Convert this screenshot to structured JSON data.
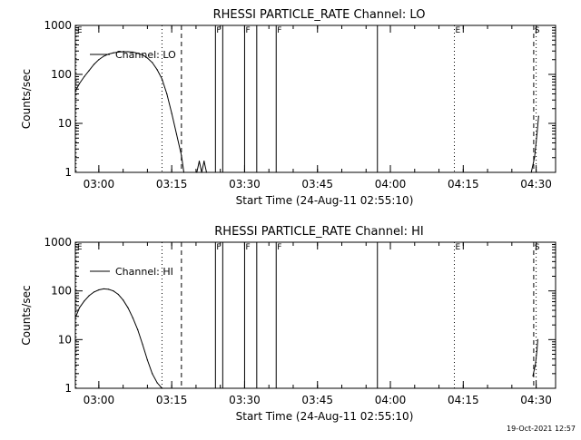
{
  "footer": {
    "timestamp": "19-Oct-2021 12:57"
  },
  "chart_data": [
    {
      "type": "line",
      "title": "RHESSI PARTICLE_RATE Channel: LO",
      "xlabel": "Start Time (24-Aug-11 02:55:10)",
      "ylabel": "Counts/sec",
      "y_scale": "log",
      "ylim": [
        1,
        1000
      ],
      "xlim": [
        "02:55:10",
        "04:34:00"
      ],
      "x_ticks": [
        "03:00",
        "03:15",
        "03:30",
        "03:45",
        "04:00",
        "04:15",
        "04:30"
      ],
      "y_ticks": [
        "1",
        "10",
        "100",
        "1000"
      ],
      "legend": "top-left",
      "series": [
        {
          "name": "Channel: LO",
          "x": [
            "02:55:10",
            "02:56:00",
            "02:57:00",
            "02:58:00",
            "02:59:00",
            "03:00:00",
            "03:01:00",
            "03:02:00",
            "03:03:00",
            "03:04:00",
            "03:05:00",
            "03:06:00",
            "03:07:00",
            "03:08:00",
            "03:09:00",
            "03:10:00",
            "03:11:00",
            "03:12:00",
            "03:13:00",
            "03:14:00",
            "03:15:00",
            "03:16:00",
            "03:17:00",
            "03:17:30"
          ],
          "values": [
            45,
            65,
            90,
            120,
            160,
            200,
            235,
            260,
            275,
            285,
            290,
            290,
            285,
            270,
            250,
            215,
            175,
            125,
            80,
            40,
            16,
            6,
            2.2,
            1
          ]
        },
        {
          "name": "",
          "x": [
            "03:20:10",
            "03:20:40",
            "03:21:10",
            "03:21:40",
            "03:22:10"
          ],
          "values": [
            1,
            1.7,
            1,
            1.7,
            1
          ]
        },
        {
          "name": "",
          "x": [
            "04:29:00",
            "04:29:40",
            "04:30:10",
            "04:30:30"
          ],
          "values": [
            1,
            2,
            6,
            14
          ]
        }
      ],
      "markers": [
        {
          "time": "02:55:20",
          "style": "dotted",
          "label": "E"
        },
        {
          "time": "03:13:00",
          "style": "dotted",
          "label": ""
        },
        {
          "time": "03:17:00",
          "style": "dashed",
          "label": ""
        },
        {
          "time": "03:24:00",
          "style": "solid",
          "label": "F"
        },
        {
          "time": "03:25:30",
          "style": "solid",
          "label": ""
        },
        {
          "time": "03:30:00",
          "style": "solid",
          "label": "F"
        },
        {
          "time": "03:32:30",
          "style": "solid",
          "label": ""
        },
        {
          "time": "03:36:30",
          "style": "solid",
          "label": "F"
        },
        {
          "time": "03:57:20",
          "style": "solid",
          "label": ""
        },
        {
          "time": "04:13:10",
          "style": "dotted",
          "label": "E"
        },
        {
          "time": "04:29:30",
          "style": "dashed",
          "label": "S"
        },
        {
          "time": "04:30:00",
          "style": "dotted",
          "label": ""
        }
      ]
    },
    {
      "type": "line",
      "title": "RHESSI PARTICLE_RATE Channel: HI",
      "xlabel": "Start Time (24-Aug-11 02:55:10)",
      "ylabel": "Counts/sec",
      "y_scale": "log",
      "ylim": [
        1,
        1000
      ],
      "xlim": [
        "02:55:10",
        "04:34:00"
      ],
      "x_ticks": [
        "03:00",
        "03:15",
        "03:30",
        "03:45",
        "04:00",
        "04:15",
        "04:30"
      ],
      "y_ticks": [
        "1",
        "10",
        "100",
        "1000"
      ],
      "legend": "top-left",
      "series": [
        {
          "name": "Channel: HI",
          "x": [
            "02:55:10",
            "02:56:00",
            "02:57:00",
            "02:58:00",
            "02:59:00",
            "03:00:00",
            "03:01:00",
            "03:02:00",
            "03:03:00",
            "03:04:00",
            "03:05:00",
            "03:06:00",
            "03:07:00",
            "03:08:00",
            "03:09:00",
            "03:10:00",
            "03:11:00",
            "03:12:00",
            "03:13:00"
          ],
          "values": [
            28,
            45,
            62,
            80,
            95,
            105,
            110,
            108,
            100,
            85,
            65,
            45,
            28,
            16,
            8,
            3.8,
            2,
            1.3,
            1
          ]
        },
        {
          "name": "",
          "x": [
            "04:29:20",
            "04:29:50",
            "04:30:10",
            "04:30:20"
          ],
          "values": [
            1.8,
            3,
            6,
            10
          ]
        }
      ],
      "markers": [
        {
          "time": "02:55:20",
          "style": "dotted",
          "label": "E"
        },
        {
          "time": "03:13:00",
          "style": "dotted",
          "label": ""
        },
        {
          "time": "03:17:00",
          "style": "dashed",
          "label": ""
        },
        {
          "time": "03:24:00",
          "style": "solid",
          "label": "F"
        },
        {
          "time": "03:25:30",
          "style": "solid",
          "label": ""
        },
        {
          "time": "03:30:00",
          "style": "solid",
          "label": "F"
        },
        {
          "time": "03:32:30",
          "style": "solid",
          "label": ""
        },
        {
          "time": "03:36:30",
          "style": "solid",
          "label": "F"
        },
        {
          "time": "03:57:20",
          "style": "solid",
          "label": ""
        },
        {
          "time": "04:13:10",
          "style": "dotted",
          "label": "E"
        },
        {
          "time": "04:29:30",
          "style": "dashed",
          "label": "S"
        },
        {
          "time": "04:30:00",
          "style": "dotted",
          "label": ""
        }
      ]
    }
  ]
}
